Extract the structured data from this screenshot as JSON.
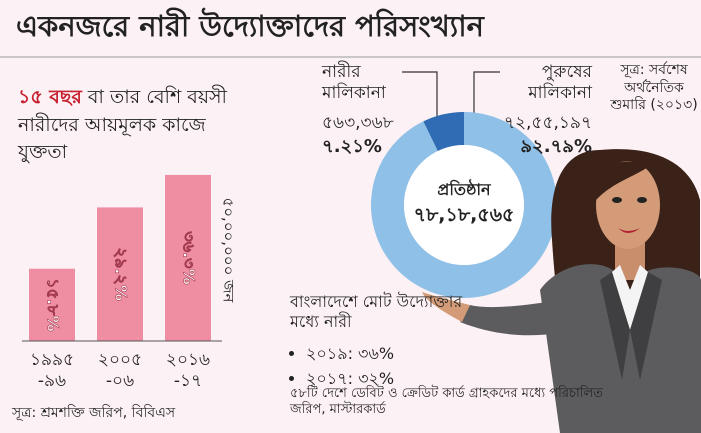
{
  "page_title": "একনজরে নারী উদ্যোক্তাদের পরিসংখ্যান",
  "chart_data": [
    {
      "type": "bar",
      "title_highlight": "১৫ বছর",
      "title": "বা তার বেশি বয়সী নারীদের আয়মূলক কাজে যুক্ততা",
      "categories": [
        "১৯৯৫ -৯৬",
        "২০০৫ -০৬",
        "২০১৬ -১৭"
      ],
      "values": [
        15.8,
        29.2,
        36.3
      ],
      "value_labels": [
        "১৫.৮%",
        "২৯.২%",
        "৩৬.৩%"
      ],
      "color": "#ef8ea2",
      "ylim": [
        0,
        40
      ],
      "annotation": "৫০,০০,০০০ জন",
      "source": "সূত্র: শ্রমশক্তি জরিপ, বিবিএস"
    },
    {
      "type": "pie",
      "categories": [
        "নারীর মালিকানা",
        "পুরুষের মালিকানা"
      ],
      "values": [
        7.21,
        92.79
      ],
      "value_labels": [
        "৭.২১%",
        "৯২.৭৯%"
      ],
      "counts": [
        563368,
        7255197
      ],
      "count_labels": [
        "৫৬৩,৩৬৮",
        "৭২,৫৫,১৯৭"
      ],
      "colors": [
        "#2f6cb3",
        "#8fc0e8"
      ],
      "center_label": "প্রতিষ্ঠান",
      "total": 7818565,
      "total_label": "৭৮,১৮,৫৬৫",
      "source": "সূত্র: সর্বশেষ অর্থনৈতিক শুমারি (২০১৩)"
    }
  ],
  "stats": {
    "title": "বাংলাদেশে মোট উদ্যোক্তার মধ্যে নারী",
    "items": [
      "২০১৯: ৩৬%",
      "২০১৭: ৩২%"
    ],
    "source": "৫৮টি দেশে ডেবিট ও ক্রেডিট কার্ড গ্রাহকদের মধ্যে পরিচালিত জরিপ, মাস্টারকার্ড"
  }
}
